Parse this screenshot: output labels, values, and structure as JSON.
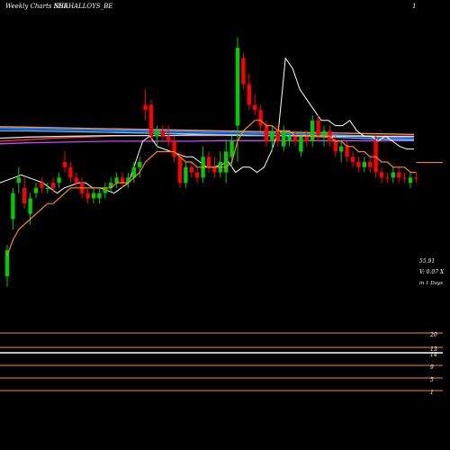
{
  "header": {
    "left": "Weekly Charts NSE",
    "symbol": "SHAHALLOYS_BE",
    "right": "1"
  },
  "annotations": {
    "price": "55.91",
    "volume": "V: 0.07 X",
    "period": "in 1 Days"
  },
  "colors": {
    "background": "#000000",
    "up": "#00cc00",
    "down": "#ff0000",
    "ema": "#ff8c00",
    "price_line": "#ffffff",
    "ma_blue": "#1f6fff",
    "ma_purple": "#cc44ff",
    "ma_red": "#ff3333",
    "ma_orange": "#ff9933",
    "ma_white": "#dddddd",
    "ma_cyan": "#66ccff",
    "indicator_line": "#ff8c00",
    "indicator_band": "#ffffff"
  },
  "chart_data": {
    "type": "candlestick",
    "title": "",
    "xlabel": "",
    "ylabel": "",
    "ylim": [
      30,
      82
    ],
    "candles": [
      {
        "o": 34,
        "h": 40,
        "l": 32,
        "c": 39,
        "d": "up"
      },
      {
        "o": 45,
        "h": 51,
        "l": 43,
        "c": 50,
        "d": "up"
      },
      {
        "o": 52,
        "h": 55,
        "l": 50,
        "c": 53,
        "d": "up"
      },
      {
        "o": 51,
        "h": 53,
        "l": 47,
        "c": 48,
        "d": "down"
      },
      {
        "o": 46,
        "h": 50,
        "l": 44,
        "c": 49,
        "d": "up"
      },
      {
        "o": 50,
        "h": 52,
        "l": 49,
        "c": 51,
        "d": "up"
      },
      {
        "o": 52,
        "h": 53,
        "l": 50,
        "c": 51,
        "d": "down"
      },
      {
        "o": 51,
        "h": 52,
        "l": 50,
        "c": 51,
        "d": "up"
      },
      {
        "o": 52,
        "h": 53,
        "l": 50,
        "c": 51,
        "d": "down"
      },
      {
        "o": 52,
        "h": 54,
        "l": 51,
        "c": 53,
        "d": "up"
      },
      {
        "o": 56,
        "h": 58,
        "l": 54,
        "c": 55,
        "d": "down"
      },
      {
        "o": 55,
        "h": 56,
        "l": 52,
        "c": 53,
        "d": "down"
      },
      {
        "o": 53,
        "h": 54,
        "l": 51,
        "c": 52,
        "d": "down"
      },
      {
        "o": 52,
        "h": 53,
        "l": 49,
        "c": 50,
        "d": "down"
      },
      {
        "o": 50,
        "h": 51,
        "l": 48,
        "c": 49,
        "d": "down"
      },
      {
        "o": 49,
        "h": 51,
        "l": 48,
        "c": 50,
        "d": "up"
      },
      {
        "o": 49,
        "h": 51,
        "l": 48,
        "c": 50,
        "d": "up"
      },
      {
        "o": 50,
        "h": 52,
        "l": 49,
        "c": 51,
        "d": "up"
      },
      {
        "o": 51,
        "h": 53,
        "l": 50,
        "c": 52,
        "d": "up"
      },
      {
        "o": 52,
        "h": 54,
        "l": 51,
        "c": 53,
        "d": "up"
      },
      {
        "o": 53,
        "h": 54,
        "l": 51,
        "c": 52,
        "d": "down"
      },
      {
        "o": 52,
        "h": 54,
        "l": 51,
        "c": 53,
        "d": "up"
      },
      {
        "o": 53,
        "h": 56,
        "l": 52,
        "c": 55,
        "d": "up"
      },
      {
        "o": 55,
        "h": 57,
        "l": 53,
        "c": 56,
        "d": "up"
      },
      {
        "o": 66,
        "h": 70,
        "l": 64,
        "c": 67,
        "d": "down"
      },
      {
        "o": 67,
        "h": 68,
        "l": 60,
        "c": 61,
        "d": "down"
      },
      {
        "o": 61,
        "h": 63,
        "l": 59,
        "c": 62,
        "d": "up"
      },
      {
        "o": 62,
        "h": 63,
        "l": 60,
        "c": 61,
        "d": "down"
      },
      {
        "o": 61,
        "h": 63,
        "l": 59,
        "c": 60,
        "d": "down"
      },
      {
        "o": 60,
        "h": 61,
        "l": 56,
        "c": 57,
        "d": "down"
      },
      {
        "o": 57,
        "h": 58,
        "l": 51,
        "c": 52,
        "d": "down"
      },
      {
        "o": 52,
        "h": 56,
        "l": 51,
        "c": 55,
        "d": "up"
      },
      {
        "o": 55,
        "h": 56,
        "l": 53,
        "c": 54,
        "d": "down"
      },
      {
        "o": 54,
        "h": 55,
        "l": 52,
        "c": 53,
        "d": "down"
      },
      {
        "o": 53,
        "h": 59,
        "l": 52,
        "c": 57,
        "d": "up"
      },
      {
        "o": 57,
        "h": 58,
        "l": 54,
        "c": 55,
        "d": "down"
      },
      {
        "o": 55,
        "h": 57,
        "l": 53,
        "c": 54,
        "d": "down"
      },
      {
        "o": 54,
        "h": 58,
        "l": 53,
        "c": 56,
        "d": "up"
      },
      {
        "o": 54,
        "h": 60,
        "l": 52,
        "c": 58,
        "d": "up"
      },
      {
        "o": 57,
        "h": 61,
        "l": 55,
        "c": 60,
        "d": "up"
      },
      {
        "o": 63,
        "h": 80,
        "l": 56,
        "c": 78,
        "d": "up"
      },
      {
        "o": 76,
        "h": 77,
        "l": 70,
        "c": 71,
        "d": "down"
      },
      {
        "o": 71,
        "h": 73,
        "l": 66,
        "c": 67,
        "d": "down"
      },
      {
        "o": 67,
        "h": 69,
        "l": 65,
        "c": 66,
        "d": "down"
      },
      {
        "o": 66,
        "h": 67,
        "l": 62,
        "c": 63,
        "d": "down"
      },
      {
        "o": 63,
        "h": 64,
        "l": 59,
        "c": 60,
        "d": "down"
      },
      {
        "o": 60,
        "h": 63,
        "l": 58,
        "c": 62,
        "d": "up"
      },
      {
        "o": 62,
        "h": 63,
        "l": 59,
        "c": 60,
        "d": "down"
      },
      {
        "o": 59,
        "h": 63,
        "l": 58,
        "c": 62,
        "d": "up"
      },
      {
        "o": 60,
        "h": 62,
        "l": 59,
        "c": 61,
        "d": "up"
      },
      {
        "o": 61,
        "h": 62,
        "l": 59,
        "c": 60,
        "d": "down"
      },
      {
        "o": 58,
        "h": 62,
        "l": 57,
        "c": 61,
        "d": "up"
      },
      {
        "o": 61,
        "h": 62,
        "l": 59,
        "c": 60,
        "d": "down"
      },
      {
        "o": 60,
        "h": 65,
        "l": 59,
        "c": 64,
        "d": "up"
      },
      {
        "o": 64,
        "h": 65,
        "l": 60,
        "c": 61,
        "d": "down"
      },
      {
        "o": 61,
        "h": 63,
        "l": 59,
        "c": 62,
        "d": "up"
      },
      {
        "o": 62,
        "h": 63,
        "l": 59,
        "c": 60,
        "d": "down"
      },
      {
        "o": 60,
        "h": 61,
        "l": 57,
        "c": 58,
        "d": "down"
      },
      {
        "o": 58,
        "h": 60,
        "l": 56,
        "c": 59,
        "d": "up"
      },
      {
        "o": 59,
        "h": 60,
        "l": 56,
        "c": 57,
        "d": "down"
      },
      {
        "o": 57,
        "h": 58,
        "l": 55,
        "c": 56,
        "d": "down"
      },
      {
        "o": 56,
        "h": 57,
        "l": 54,
        "c": 55,
        "d": "down"
      },
      {
        "o": 55,
        "h": 57,
        "l": 54,
        "c": 56,
        "d": "up"
      },
      {
        "o": 56,
        "h": 57,
        "l": 54,
        "c": 55,
        "d": "down"
      },
      {
        "o": 60,
        "h": 61,
        "l": 53,
        "c": 54,
        "d": "down"
      },
      {
        "o": 54,
        "h": 55,
        "l": 52,
        "c": 53,
        "d": "down"
      },
      {
        "o": 53,
        "h": 54,
        "l": 52,
        "c": 53,
        "d": "down"
      },
      {
        "o": 53,
        "h": 55,
        "l": 52,
        "c": 54,
        "d": "up"
      },
      {
        "o": 54,
        "h": 55,
        "l": 52,
        "c": 53,
        "d": "down"
      },
      {
        "o": 53,
        "h": 54,
        "l": 52,
        "c": 53,
        "d": "down"
      },
      {
        "o": 52,
        "h": 54,
        "l": 51,
        "c": 53,
        "d": "up"
      },
      {
        "o": 53,
        "h": 54,
        "l": 52,
        "c": 53,
        "d": "down"
      }
    ],
    "ema": [
      38,
      41,
      43,
      44,
      45,
      46,
      47,
      48,
      48,
      49,
      50,
      51,
      51,
      51,
      51,
      51,
      51,
      51,
      51,
      52,
      52,
      52,
      53,
      54,
      56,
      57,
      58,
      58,
      58,
      58,
      57,
      56,
      56,
      55,
      55,
      55,
      55,
      55,
      55,
      56,
      60,
      62,
      63,
      64,
      64,
      63,
      63,
      62,
      62,
      62,
      61,
      61,
      61,
      61,
      61,
      61,
      61,
      60,
      60,
      59,
      59,
      58,
      58,
      57,
      57,
      56,
      56,
      55,
      55,
      55,
      54,
      54
    ],
    "close_line": [
      52,
      52.5,
      53,
      53.5,
      53,
      52.5,
      52,
      51,
      50,
      51,
      51.5,
      52,
      52,
      51,
      51,
      50.5,
      50,
      51,
      52,
      56,
      60,
      61,
      59,
      58.5,
      58,
      57.5,
      57,
      57,
      56,
      55,
      55,
      55.5,
      56,
      54,
      55,
      55,
      54,
      55,
      58,
      62,
      76,
      74,
      70,
      68,
      66,
      64,
      64,
      63,
      63,
      64,
      62,
      61,
      61,
      60,
      61,
      60,
      59,
      58.5,
      58.5
    ],
    "moving_averages": [
      {
        "color": "ma_blue",
        "values": [
          62.5,
          62.4,
          62.3,
          62.2,
          62.1,
          62.0,
          61.9,
          61.8,
          61.7,
          61.6,
          61.5,
          61.4,
          61.2,
          61.0,
          60.8,
          60.5
        ]
      },
      {
        "color": "ma_purple",
        "values": [
          59.5,
          59.7,
          59.8,
          59.9,
          60.0,
          60.0,
          60.0,
          60.0,
          60.1,
          60.1,
          60.1,
          60.1,
          60.1,
          60.1,
          60.1,
          60.1
        ]
      },
      {
        "color": "ma_red",
        "values": [
          60.0,
          60.3,
          60.6,
          60.8,
          61.0,
          61.1,
          61.1,
          61.1,
          61.1,
          61.1,
          61.1,
          61.0,
          61.0,
          61.0,
          61.0,
          61.0
        ]
      },
      {
        "color": "ma_orange",
        "values": [
          62.8,
          62.7,
          62.6,
          62.5,
          62.4,
          62.3,
          62.2,
          62.1,
          62.0,
          61.9,
          61.8,
          61.7,
          61.6,
          61.5,
          61.4,
          61.3
        ]
      },
      {
        "color": "ma_white",
        "values": [
          60.6,
          60.8,
          60.9,
          61.0,
          61.1,
          61.1,
          61.1,
          61.2,
          61.2,
          61.1,
          61.1,
          61.1,
          61.0,
          61.0,
          60.9,
          60.9
        ]
      },
      {
        "color": "ma_cyan",
        "values": [
          62.0,
          62.0,
          61.9,
          61.8,
          61.7,
          61.6,
          61.5,
          61.4,
          61.3,
          61.2,
          61.1,
          61.0,
          60.8,
          60.6,
          60.4,
          60.2
        ]
      }
    ],
    "last_close": 55.91,
    "indicator_levels": [
      "20",
      "13",
      "14",
      "9",
      "5",
      "1"
    ],
    "grid": false,
    "legend": "none"
  }
}
